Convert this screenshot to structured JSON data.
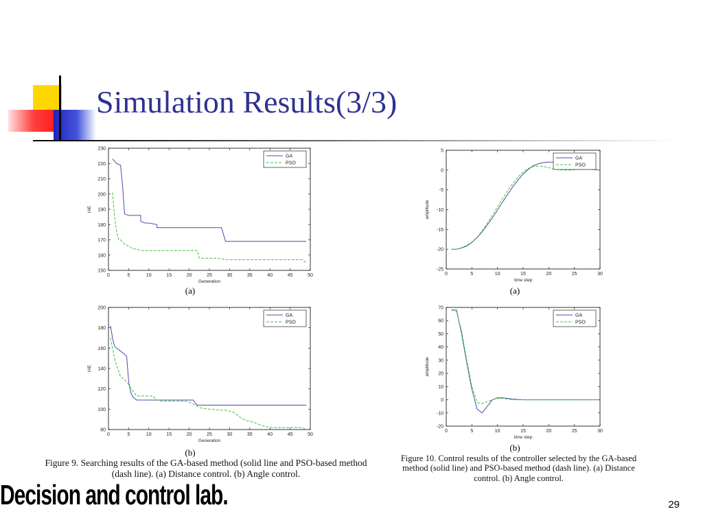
{
  "slide": {
    "title": "Simulation Results(3/3)",
    "footer": "Decision and control lab.",
    "slide_number": "29",
    "colors": {
      "title": "#2e3192",
      "deco_yellow": "#ffd700",
      "deco_red": "#ff3030",
      "deco_blue": "#2222bb",
      "line": "#000000"
    }
  },
  "figures": {
    "fig9": {
      "caption": "Figure 9. Searching results of the GA-based method (solid line and PSO-based method (dash line). (a) Distance control. (b) Angle control."
    },
    "fig10": {
      "caption": "Figure 10. Control results of the controller selected by the GA-based method (solid line) and PSO-based method (dash line). (a) Distance control. (b) Angle control."
    }
  },
  "chart_data": [
    {
      "id": "fig9a",
      "panel_label": "(a)",
      "type": "line",
      "xlabel": "Generation",
      "ylabel": "IAE",
      "xlim": [
        0,
        50
      ],
      "ylim": [
        150,
        230
      ],
      "xticks": [
        0,
        5,
        10,
        15,
        20,
        25,
        30,
        35,
        40,
        45,
        50
      ],
      "yticks": [
        150,
        160,
        170,
        180,
        190,
        200,
        210,
        220,
        230
      ],
      "legend_position": "top-right",
      "series": [
        {
          "name": "GA",
          "color": "#4a4aa8",
          "dash": "solid",
          "x": [
            1,
            2,
            2,
            3,
            3.5,
            4,
            5,
            5,
            8,
            8,
            9,
            10,
            12,
            12,
            28,
            29,
            49
          ],
          "y": [
            223,
            220,
            220,
            219,
            205,
            187,
            186,
            186,
            186,
            182,
            181,
            181,
            180,
            178,
            178,
            169,
            169
          ]
        },
        {
          "name": "PSO",
          "color": "#3ec23e",
          "dash": "dash",
          "x": [
            1,
            1.5,
            2,
            2.5,
            3,
            4,
            5,
            6,
            7,
            8,
            11,
            15,
            20,
            22,
            22.5,
            24,
            27,
            29,
            34,
            40,
            46,
            48,
            49
          ],
          "y": [
            201,
            185,
            176,
            170,
            170,
            167,
            166,
            164,
            164,
            163,
            163,
            163,
            163,
            163,
            158,
            158,
            158,
            157,
            157,
            157,
            157,
            157,
            155
          ]
        }
      ]
    },
    {
      "id": "fig10a",
      "panel_label": "(a)",
      "type": "line",
      "xlabel": "time step",
      "ylabel": "amplitude",
      "xlim": [
        0,
        30
      ],
      "ylim": [
        -25,
        5
      ],
      "xticks": [
        0,
        5,
        10,
        15,
        20,
        25,
        30
      ],
      "yticks": [
        -25,
        -20,
        -15,
        -10,
        -5,
        0,
        5
      ],
      "legend_position": "top-right",
      "series": [
        {
          "name": "GA",
          "color": "#4a4aa8",
          "dash": "solid",
          "x": [
            1,
            2,
            3,
            4,
            5,
            6,
            7,
            8,
            9,
            10,
            11,
            12,
            13,
            14,
            15,
            16,
            17,
            18,
            19,
            20,
            21,
            22,
            23,
            24,
            25,
            26,
            27,
            28,
            29,
            30
          ],
          "y": [
            -20,
            -20,
            -19.7,
            -19.2,
            -18.3,
            -17.1,
            -15.6,
            -13.9,
            -12.1,
            -10.1,
            -8.1,
            -6.1,
            -4.2,
            -2.5,
            -1,
            0.2,
            1.1,
            1.6,
            1.9,
            2,
            2,
            1.9,
            1.7,
            1.4,
            1.1,
            0.8,
            0.5,
            0.3,
            0.1,
            0
          ]
        },
        {
          "name": "PSO",
          "color": "#3ec23e",
          "dash": "dash",
          "x": [
            1,
            2,
            3,
            4,
            5,
            6,
            7,
            8,
            9,
            10,
            11,
            12,
            13,
            14,
            15,
            16,
            17,
            18,
            19,
            20,
            21,
            22,
            23,
            24,
            25,
            26,
            27,
            28,
            29,
            30
          ],
          "y": [
            -20,
            -20,
            -19.6,
            -19,
            -18.2,
            -17,
            -15.4,
            -13.5,
            -11.4,
            -9.3,
            -7.2,
            -5.2,
            -3.4,
            -1.8,
            -0.5,
            0.4,
            0.9,
            1,
            0.9,
            0.6,
            0.3,
            0.1,
            0,
            0,
            0.1,
            0.2,
            0.2,
            0.2,
            0.1,
            0
          ]
        }
      ]
    },
    {
      "id": "fig9b",
      "panel_label": "(b)",
      "type": "line",
      "xlabel": "Generation",
      "ylabel": "IAE",
      "xlim": [
        0,
        50
      ],
      "ylim": [
        80,
        200
      ],
      "xticks": [
        0,
        5,
        10,
        15,
        20,
        25,
        30,
        35,
        40,
        45,
        50
      ],
      "yticks": [
        80,
        100,
        120,
        140,
        160,
        180,
        200
      ],
      "legend_position": "top-right",
      "series": [
        {
          "name": "GA",
          "color": "#4a4aa8",
          "dash": "solid",
          "x": [
            0.5,
            1,
            1.5,
            2,
            3,
            4,
            4.5,
            5,
            5.5,
            6,
            7,
            8,
            12,
            17,
            21,
            21.5,
            22,
            30,
            40,
            49
          ],
          "y": [
            182,
            170,
            162,
            160,
            157,
            154,
            152,
            127,
            117,
            112,
            109,
            109,
            109,
            109,
            109,
            106,
            104,
            104,
            104,
            104
          ]
        },
        {
          "name": "PSO",
          "color": "#3ec23e",
          "dash": "dash",
          "x": [
            0.5,
            1,
            1.5,
            2,
            3,
            4,
            5,
            6,
            7,
            8,
            10,
            11,
            12,
            13,
            16,
            19,
            20,
            21,
            22,
            23,
            25,
            28,
            29,
            30,
            31,
            32,
            33,
            34,
            35,
            36,
            38,
            40,
            44,
            48,
            49
          ],
          "y": [
            170,
            160,
            150,
            143,
            132,
            129,
            124,
            118,
            113,
            113,
            113,
            113,
            109,
            108,
            108,
            108,
            107,
            105,
            103,
            101,
            100,
            99,
            99,
            98,
            97,
            94,
            91,
            89,
            88,
            87,
            84,
            82,
            82,
            82,
            80
          ]
        }
      ]
    },
    {
      "id": "fig10b",
      "panel_label": "(b)",
      "type": "line",
      "xlabel": "time step",
      "ylabel": "amplitude",
      "xlim": [
        0,
        30
      ],
      "ylim": [
        -20,
        70
      ],
      "xticks": [
        0,
        5,
        10,
        15,
        20,
        25,
        30
      ],
      "yticks": [
        -20,
        -10,
        0,
        10,
        20,
        30,
        40,
        50,
        60,
        70
      ],
      "legend_position": "top-right",
      "series": [
        {
          "name": "GA",
          "color": "#4a4aa8",
          "dash": "solid",
          "x": [
            1,
            2,
            3,
            4,
            5,
            6,
            7,
            8,
            9,
            10,
            11,
            12,
            13,
            15,
            20,
            25,
            30
          ],
          "y": [
            68,
            68,
            50,
            28,
            8,
            -7,
            -10,
            -5,
            0,
            1.5,
            1.5,
            1,
            0.5,
            0,
            0,
            0,
            0
          ]
        },
        {
          "name": "PSO",
          "color": "#3ec23e",
          "dash": "dash",
          "x": [
            1,
            2,
            3,
            4,
            5,
            6,
            7,
            8,
            9,
            10,
            11,
            12,
            13,
            15,
            20,
            25,
            30
          ],
          "y": [
            68,
            67,
            52,
            30,
            10,
            -2,
            -3,
            -1.5,
            0,
            1,
            1,
            0.5,
            0,
            0,
            0,
            0,
            0
          ]
        }
      ]
    }
  ]
}
